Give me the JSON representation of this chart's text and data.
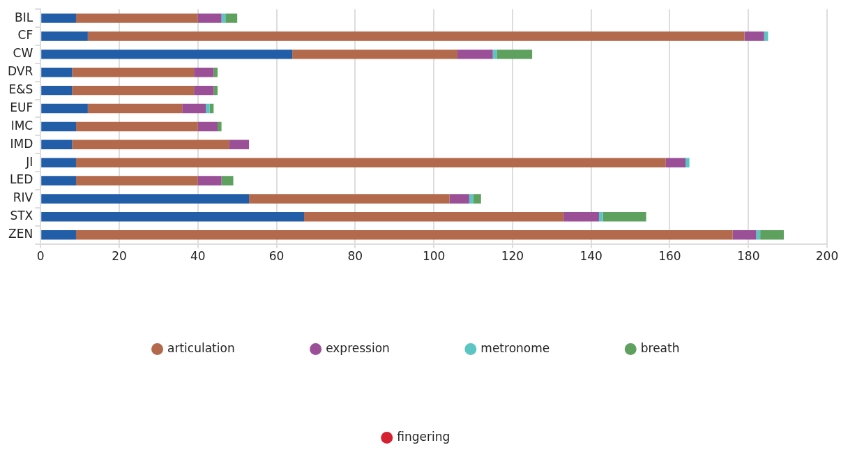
{
  "chart_data": {
    "type": "bar",
    "orientation": "horizontal",
    "stacked": true,
    "categories": [
      "BIL",
      "CF",
      "CW",
      "DVR",
      "E&S",
      "EUF",
      "IMC",
      "IMD",
      "JI",
      "LED",
      "RIV",
      "STX",
      "ZEN"
    ],
    "series": [
      {
        "color": "#225da8",
        "values": [
          9,
          12,
          64,
          8,
          8,
          12,
          9,
          8,
          9,
          9,
          53,
          67,
          9
        ]
      },
      {
        "name": "articulation",
        "color": "#b3694b",
        "values": [
          31,
          167,
          42,
          31,
          31,
          24,
          31,
          40,
          150,
          31,
          51,
          66,
          167
        ]
      },
      {
        "name": "expression",
        "color": "#9a4f97",
        "values": [
          6,
          5,
          9,
          5,
          5,
          6,
          5,
          5,
          5,
          6,
          5,
          9,
          6
        ]
      },
      {
        "name": "metronome",
        "color": "#5bc5c3",
        "values": [
          1,
          1,
          1,
          0,
          0,
          1,
          0,
          0,
          1,
          0,
          1,
          1,
          1
        ]
      },
      {
        "name": "breath",
        "color": "#5ea05e",
        "values": [
          3,
          0,
          9,
          1,
          1,
          1,
          1,
          0,
          0,
          3,
          2,
          11,
          6
        ]
      },
      {
        "name": "fingering",
        "color": "#d5202f",
        "values": [
          0,
          0,
          0,
          0,
          0,
          0,
          0,
          0,
          0,
          0,
          0,
          0,
          0
        ]
      }
    ],
    "xlim": [
      0,
      200
    ],
    "xticks": [
      0,
      20,
      40,
      60,
      80,
      100,
      120,
      140,
      160,
      180,
      200
    ],
    "grid": "x",
    "legend": "bottom"
  }
}
